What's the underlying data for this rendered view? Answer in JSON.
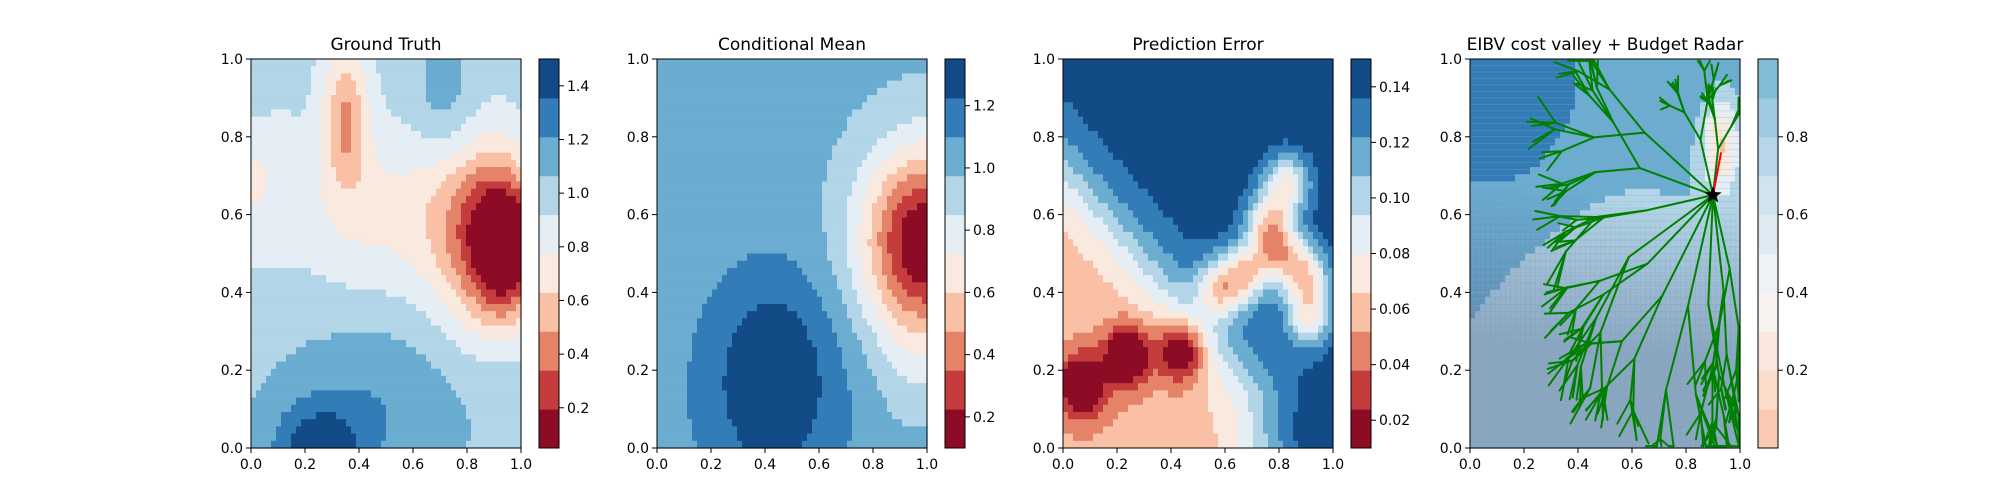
{
  "chart_data": [
    {
      "type": "heatmap",
      "title": "Ground Truth",
      "field": "ground_truth",
      "xlim": [
        0,
        1
      ],
      "ylim": [
        0,
        1
      ],
      "xticks": [
        "0.0",
        "0.2",
        "0.4",
        "0.6",
        "0.8",
        "1.0"
      ],
      "yticks": [
        "0.0",
        "0.2",
        "0.4",
        "0.6",
        "0.8",
        "1.0"
      ],
      "colormap": "RdBu",
      "colorbar": {
        "range": [
          0.05,
          1.5
        ],
        "ticks": [
          0.2,
          0.4,
          0.6,
          0.8,
          1.0,
          1.2,
          1.4
        ],
        "tick_labels": [
          "0.2",
          "0.4",
          "0.6",
          "0.8",
          "1.0",
          "1.2",
          "1.4"
        ],
        "levels": 10
      },
      "features": [
        {
          "kind": "low",
          "x": 0.93,
          "y": 0.52,
          "value": 0.1
        },
        {
          "kind": "low",
          "x": 0.35,
          "y": 0.85,
          "value": 0.6
        },
        {
          "kind": "high",
          "x": 0.25,
          "y": 0.05,
          "value": 1.45
        },
        {
          "kind": "high",
          "x": 0.45,
          "y": 0.22,
          "value": 1.25
        }
      ]
    },
    {
      "type": "heatmap",
      "title": "Conditional Mean",
      "field": "conditional_mean",
      "xlim": [
        0,
        1
      ],
      "ylim": [
        0,
        1
      ],
      "xticks": [
        "0.0",
        "0.2",
        "0.4",
        "0.6",
        "0.8",
        "1.0"
      ],
      "yticks": [
        "0.0",
        "0.2",
        "0.4",
        "0.6",
        "0.8",
        "1.0"
      ],
      "colormap": "RdBu",
      "colorbar": {
        "range": [
          0.1,
          1.35
        ],
        "ticks": [
          0.2,
          0.4,
          0.6,
          0.8,
          1.0,
          1.2
        ],
        "tick_labels": [
          "0.2",
          "0.4",
          "0.6",
          "0.8",
          "1.0",
          "1.2"
        ],
        "levels": 10
      },
      "features": [
        {
          "kind": "low",
          "x": 1.0,
          "y": 0.53,
          "value": 0.12
        },
        {
          "kind": "high",
          "x": 0.43,
          "y": 0.18,
          "value": 1.35
        }
      ]
    },
    {
      "type": "heatmap",
      "title": "Prediction Error",
      "field": "prediction_error",
      "xlim": [
        0,
        1
      ],
      "ylim": [
        0,
        1
      ],
      "xticks": [
        "0.0",
        "0.2",
        "0.4",
        "0.6",
        "0.8",
        "1.0"
      ],
      "yticks": [
        "0.0",
        "0.2",
        "0.4",
        "0.6",
        "0.8",
        "1.0"
      ],
      "colormap": "RdBu",
      "colorbar": {
        "range": [
          0.01,
          0.15
        ],
        "ticks": [
          0.02,
          0.04,
          0.06,
          0.08,
          0.1,
          0.12,
          0.14
        ],
        "tick_labels": [
          "0.02",
          "0.04",
          "0.06",
          "0.08",
          "0.10",
          "0.12",
          "0.14"
        ],
        "levels": 10
      },
      "features": [
        {
          "kind": "low",
          "x": 0.07,
          "y": 0.16,
          "value": 0.02
        },
        {
          "kind": "low",
          "x": 0.24,
          "y": 0.24,
          "value": 0.02
        },
        {
          "kind": "low",
          "x": 0.44,
          "y": 0.25,
          "value": 0.02
        },
        {
          "kind": "low",
          "x": 0.58,
          "y": 0.41,
          "value": 0.02
        },
        {
          "kind": "low",
          "x": 0.76,
          "y": 0.58,
          "value": 0.015
        },
        {
          "kind": "low",
          "x": 0.83,
          "y": 0.68,
          "value": 0.015
        },
        {
          "kind": "low",
          "x": 0.91,
          "y": 0.34,
          "value": 0.02
        },
        {
          "kind": "high",
          "x": 0.15,
          "y": 0.9,
          "value": 0.15
        }
      ]
    },
    {
      "type": "heatmap",
      "title": "EIBV cost valley + Budget Radar",
      "field": "cost_valley",
      "xlim": [
        0,
        1
      ],
      "ylim": [
        0,
        1
      ],
      "xticks": [
        "0.0",
        "0.2",
        "0.4",
        "0.6",
        "0.8",
        "1.0"
      ],
      "yticks": [
        "0.0",
        "0.2",
        "0.4",
        "0.6",
        "0.8",
        "1.0"
      ],
      "colormap": "RdBu",
      "colorbar": {
        "range": [
          0.0,
          1.0
        ],
        "ticks": [
          0.2,
          0.4,
          0.6,
          0.8
        ],
        "tick_labels": [
          "0.2",
          "0.4",
          "0.6",
          "0.8"
        ],
        "levels": 10
      },
      "tree_color": "#008000",
      "current_location": {
        "x": 0.9,
        "y": 0.65,
        "marker": "star"
      },
      "selected_path": [
        [
          0.9,
          0.65
        ],
        [
          0.93,
          0.76
        ]
      ],
      "tree_root": [
        0.9,
        0.65
      ]
    }
  ]
}
